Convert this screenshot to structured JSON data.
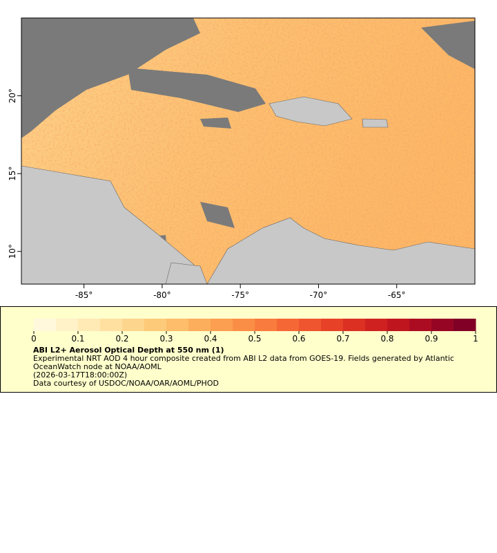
{
  "map": {
    "xlim": [
      -89,
      -60
    ],
    "ylim": [
      7.9,
      25
    ],
    "xticks": [
      {
        "value": -85,
        "label": "-85°"
      },
      {
        "value": -80,
        "label": "-80°"
      },
      {
        "value": -75,
        "label": "-75°"
      },
      {
        "value": -70,
        "label": "-70°"
      },
      {
        "value": -65,
        "label": "-65°"
      }
    ],
    "yticks": [
      {
        "value": 10,
        "label": "10°"
      },
      {
        "value": 15,
        "label": "15°"
      },
      {
        "value": 20,
        "label": "20°"
      }
    ]
  },
  "colorbar": {
    "clim": [
      0,
      1
    ],
    "ticks": [
      0,
      0.1,
      0.2,
      0.3,
      0.4,
      0.5,
      0.6,
      0.7,
      0.8,
      0.9,
      1
    ],
    "colors": [
      "#fff8dc",
      "#fff1c8",
      "#ffe9b4",
      "#ffe0a0",
      "#fdd58c",
      "#fdca7a",
      "#fdbd6a",
      "#fcae5c",
      "#fc9f50",
      "#fb8e46",
      "#f97b3d",
      "#f56835",
      "#ef552e",
      "#e74228",
      "#dc3023",
      "#cf2120",
      "#bf151f",
      "#ac0c22",
      "#960624",
      "#800026"
    ]
  },
  "legend": {
    "title": "ABI L2+ Aerosol Optical Depth at 550 nm (1)",
    "description": "Experimental NRT AOD 4 hour composite created from ABI L2 data from GOES-19. Fields generated by Atlantic OceanWatch node at NOAA/AOML",
    "time": "(2026-03-17T18:00:00Z)",
    "credit": "Data courtesy of USDOC/NOAA/OAR/AOML/PHOD"
  }
}
